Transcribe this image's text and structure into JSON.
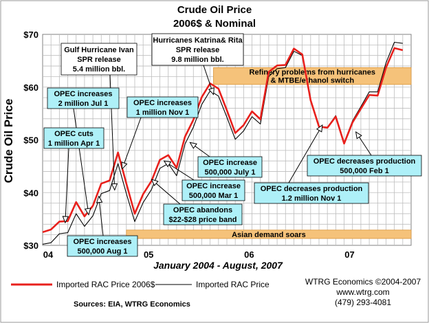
{
  "chart_data": {
    "type": "line",
    "title": "Crude Oil Price",
    "subtitle": "2006$ & Nominal",
    "ylabel": "Crude Oil Price",
    "xlabel": "January 2004 - August, 2007",
    "ylim": [
      30,
      70
    ],
    "yticks": [
      "$30",
      "$40",
      "$50",
      "$60",
      "$70"
    ],
    "xticks": [
      {
        "label": "04",
        "month": 0
      },
      {
        "label": "05",
        "month": 12
      },
      {
        "label": "06",
        "month": 24
      },
      {
        "label": "07",
        "month": 36
      }
    ],
    "grid": true,
    "series": [
      {
        "name": "Imported RAC Price 2006$",
        "color": "#e8201c",
        "values": [
          32.5,
          33.0,
          34.5,
          34.6,
          38.2,
          35.5,
          37.5,
          41.7,
          42.3,
          47.6,
          41.7,
          36.0,
          39.7,
          42.2,
          46.2,
          47.1,
          44.7,
          50.6,
          53.8,
          58.1,
          60.7,
          59.7,
          55.6,
          51.3,
          52.8,
          55.4,
          53.9,
          62.9,
          64.1,
          64.2,
          67.3,
          66.2,
          57.5,
          52.5,
          52.3,
          54.4,
          49.3,
          53.3,
          55.9,
          58.5,
          58.4,
          63.7,
          67.4,
          67.0
        ]
      },
      {
        "name": "Imported RAC Price",
        "color": "#000000",
        "values": [
          30.2,
          30.5,
          32.2,
          32.4,
          36.0,
          33.6,
          35.6,
          39.8,
          40.4,
          45.5,
          39.8,
          34.5,
          38.1,
          40.6,
          44.6,
          45.5,
          43.2,
          49.2,
          52.4,
          56.7,
          59.3,
          58.3,
          54.3,
          50.1,
          51.7,
          54.4,
          53.0,
          62.0,
          63.5,
          63.7,
          66.8,
          66.0,
          57.4,
          52.5,
          52.4,
          54.6,
          49.5,
          53.6,
          56.3,
          59.1,
          59.1,
          64.6,
          68.5,
          68.3
        ]
      }
    ],
    "bands": [
      {
        "label": "Refinery problems from hurricanes\n& MTBE/ethanol switch",
        "start": 20.4,
        "end": 44,
        "low": 60.5,
        "high": 63.7,
        "color": "#f5c27a"
      },
      {
        "label": "Asian demand soars",
        "start": 10,
        "end": 44,
        "low": 31.3,
        "high": 32.9,
        "color": "#f5c27a"
      }
    ],
    "annotations": [
      {
        "text": "Gulf Hurricane Ivan\nSPR release\n5.4 million bbl.",
        "style": "white",
        "target_month": 8.6,
        "target_value": 40.5
      },
      {
        "text": "Hurricanes Katrina& Rita\nSPR release\n9.8 million bbl.",
        "style": "white",
        "target_month": 20.4,
        "target_value": 58.6
      },
      {
        "text": "OPEC increases\n2 million Jul 1",
        "style": "cyan",
        "target_month": 5.5,
        "target_value": 35.8
      },
      {
        "text": "OPEC increases\n1 million Nov 1",
        "style": "cyan",
        "target_month": 9.5,
        "target_value": 44.5
      },
      {
        "text": "OPEC cuts\n1 million Apr 1",
        "style": "cyan",
        "target_month": 2.7,
        "target_value": 34.3
      },
      {
        "text": "OPEC increases\n500,000 Aug 1",
        "style": "cyan",
        "target_month": 6.7,
        "target_value": 39.3
      },
      {
        "text": "OPEC increase\n500,000 July 1",
        "style": "cyan",
        "target_month": 17.6,
        "target_value": 49.5
      },
      {
        "text": "OPEC increase\n500,000 Mar 1",
        "style": "cyan",
        "target_month": 14.5,
        "target_value": 46.0
      },
      {
        "text": "OPEC abandons\n$22-$28  price band",
        "style": "cyan",
        "target_month": 13.0,
        "target_value": 42.5
      },
      {
        "text": "OPEC decreases production\n1.2 million Nov 1",
        "style": "cyan",
        "target_month": 33.4,
        "target_value": 52.8
      },
      {
        "text": "OPEC decreases production\n500,000 Feb 1",
        "style": "cyan",
        "target_month": 37.4,
        "target_value": 51.5
      }
    ],
    "legend_position": "bottom"
  },
  "colors": {
    "annotation_cyan": "#aef0f8",
    "band": "#f5c27a",
    "grid": "#bdbdbd",
    "frame": "#808080"
  },
  "credit": {
    "line1": "WTRG Economics  ©2004-2007",
    "line2": "www.wtrg.com",
    "line3": "(479) 293-4081"
  },
  "sources": "Sources: EIA, WTRG Economics"
}
